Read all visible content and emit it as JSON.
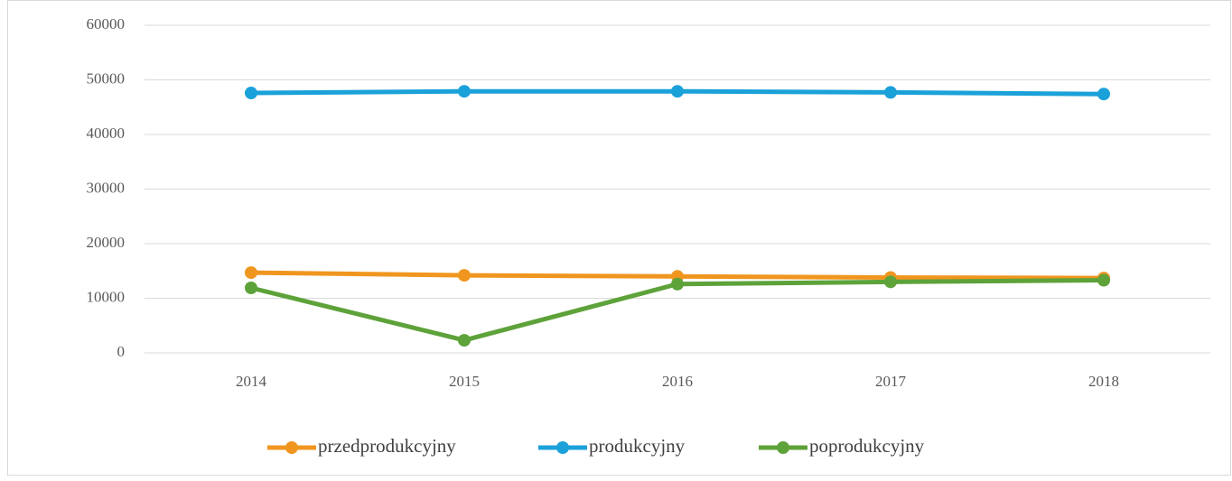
{
  "chart_data": {
    "type": "line",
    "categories": [
      "2014",
      "2015",
      "2016",
      "2017",
      "2018"
    ],
    "series": [
      {
        "name": "przedprodukcyjny",
        "color": "#f0961f",
        "values": [
          14700,
          14200,
          14000,
          13800,
          13700
        ]
      },
      {
        "name": "produkcyjny",
        "color": "#1ba1d9",
        "values": [
          47600,
          47900,
          47900,
          47700,
          47400
        ]
      },
      {
        "name": "poprodukcyjny",
        "color": "#5ea23a",
        "values": [
          11900,
          2300,
          12600,
          13000,
          13300
        ]
      }
    ],
    "ylim": [
      0,
      60000
    ],
    "yticks": [
      0,
      10000,
      20000,
      30000,
      40000,
      50000,
      60000
    ],
    "grid": true
  }
}
